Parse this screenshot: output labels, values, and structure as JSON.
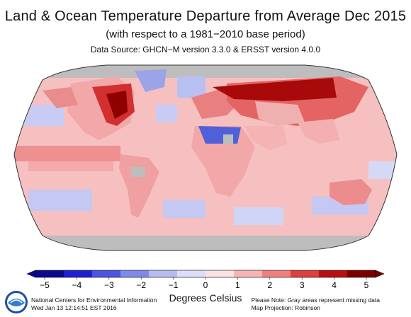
{
  "header": {
    "title": "Land & Ocean Temperature Departure from Average Dec 2015",
    "subtitle": "(with respect to a 1981−2010 base period)",
    "data_source": "Data Source: GHCN−M version 3.3.0 & ERSST version 4.0.0"
  },
  "colorbar": {
    "label": "Degrees Celsius",
    "ticks": [
      "−5",
      "−4",
      "−3",
      "−2",
      "−1",
      "0",
      "1",
      "2",
      "3",
      "4",
      "5"
    ],
    "min": -5,
    "max": 5,
    "colors": [
      "#0a0a8c",
      "#1f1fd0",
      "#4a55e0",
      "#7f8ae8",
      "#b4bcf2",
      "#dcdefa",
      "#fde2e2",
      "#f7b4b4",
      "#ee8080",
      "#dd4040",
      "#b81010",
      "#7a0000"
    ]
  },
  "footer": {
    "org_line1": "National Centers for Environmental Information",
    "org_line2": "Wed Jan 13 12:14:51 EST 2016",
    "note_line1": "Please Note: Gray areas represent missing data",
    "note_line2": "Map Projection: Robinson"
  },
  "logo": {
    "name": "noaa-logo-icon"
  },
  "map": {
    "projection": "Robinson",
    "missing_color": "#bdbdbd",
    "background_color": "#f6bdbd"
  }
}
